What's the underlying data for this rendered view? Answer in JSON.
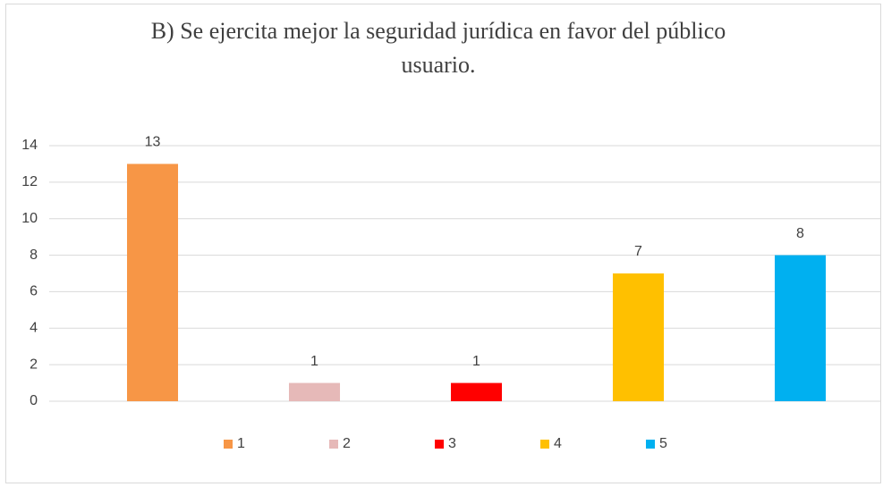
{
  "chart_data": {
    "type": "bar",
    "title": "B) Se ejercita mejor la seguridad jurídica en favor del público usuario.",
    "categories": [
      null
    ],
    "series": [
      {
        "name": "1",
        "color": "#f79646",
        "values": [
          13
        ]
      },
      {
        "name": "2",
        "color": "#e6b9b8",
        "values": [
          1
        ]
      },
      {
        "name": "3",
        "color": "#ff0000",
        "values": [
          1
        ]
      },
      {
        "name": "4",
        "color": "#ffc000",
        "values": [
          7
        ]
      },
      {
        "name": "5",
        "color": "#00b0f0",
        "values": [
          8
        ]
      }
    ],
    "ylim": [
      0,
      14
    ],
    "yticks": [
      0,
      2,
      4,
      6,
      8,
      10,
      12,
      14
    ],
    "grid": true,
    "legend": "bottom"
  }
}
